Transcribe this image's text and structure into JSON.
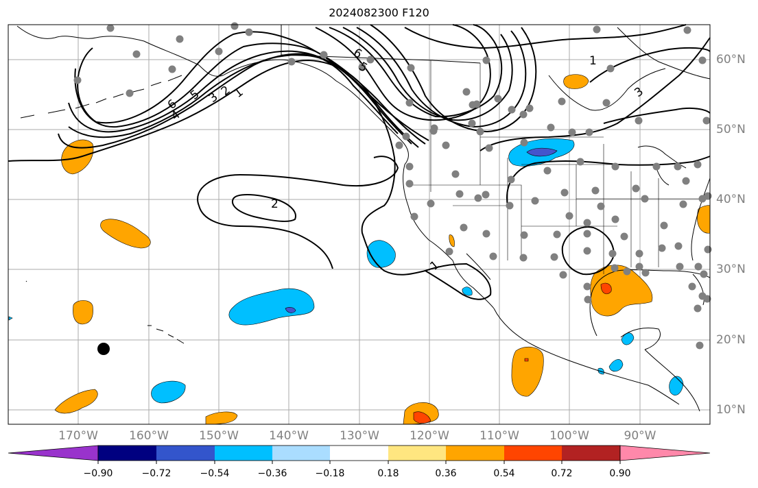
{
  "title": "2024082300 F120",
  "map": {
    "lon_labels": [
      "170°W",
      "160°W",
      "150°W",
      "140°W",
      "130°W",
      "120°W",
      "110°W",
      "100°W",
      "90°W"
    ],
    "lat_labels": [
      "60°N",
      "50°N",
      "40°N",
      "30°N",
      "20°N",
      "10°N"
    ],
    "extent": {
      "lon_min": -180,
      "lon_max": -80,
      "lat_min": 8,
      "lat_max": 65
    },
    "contour_labels": [
      "6",
      "5",
      "3",
      "2",
      "1",
      "4",
      "6",
      "5",
      "2",
      "1",
      "1",
      "3"
    ],
    "colorbar": {
      "ticks": [
        "−0.90",
        "−0.72",
        "−0.54",
        "−0.36",
        "−0.18",
        "0.18",
        "0.36",
        "0.54",
        "0.72",
        "0.90"
      ],
      "colors": [
        "#9933cc",
        "#000080",
        "#3355cc",
        "#00bfff",
        "#aaddff",
        "#ffffff",
        "#ffe680",
        "#ffa500",
        "#ff4500",
        "#b22222",
        "#ff88aa"
      ]
    },
    "colors": {
      "orange": "#ffa500",
      "cyan": "#00bfff",
      "blue": "#4455cc",
      "red": "#ff4500",
      "station": "#808080",
      "grid": "#aaaaaa"
    }
  }
}
